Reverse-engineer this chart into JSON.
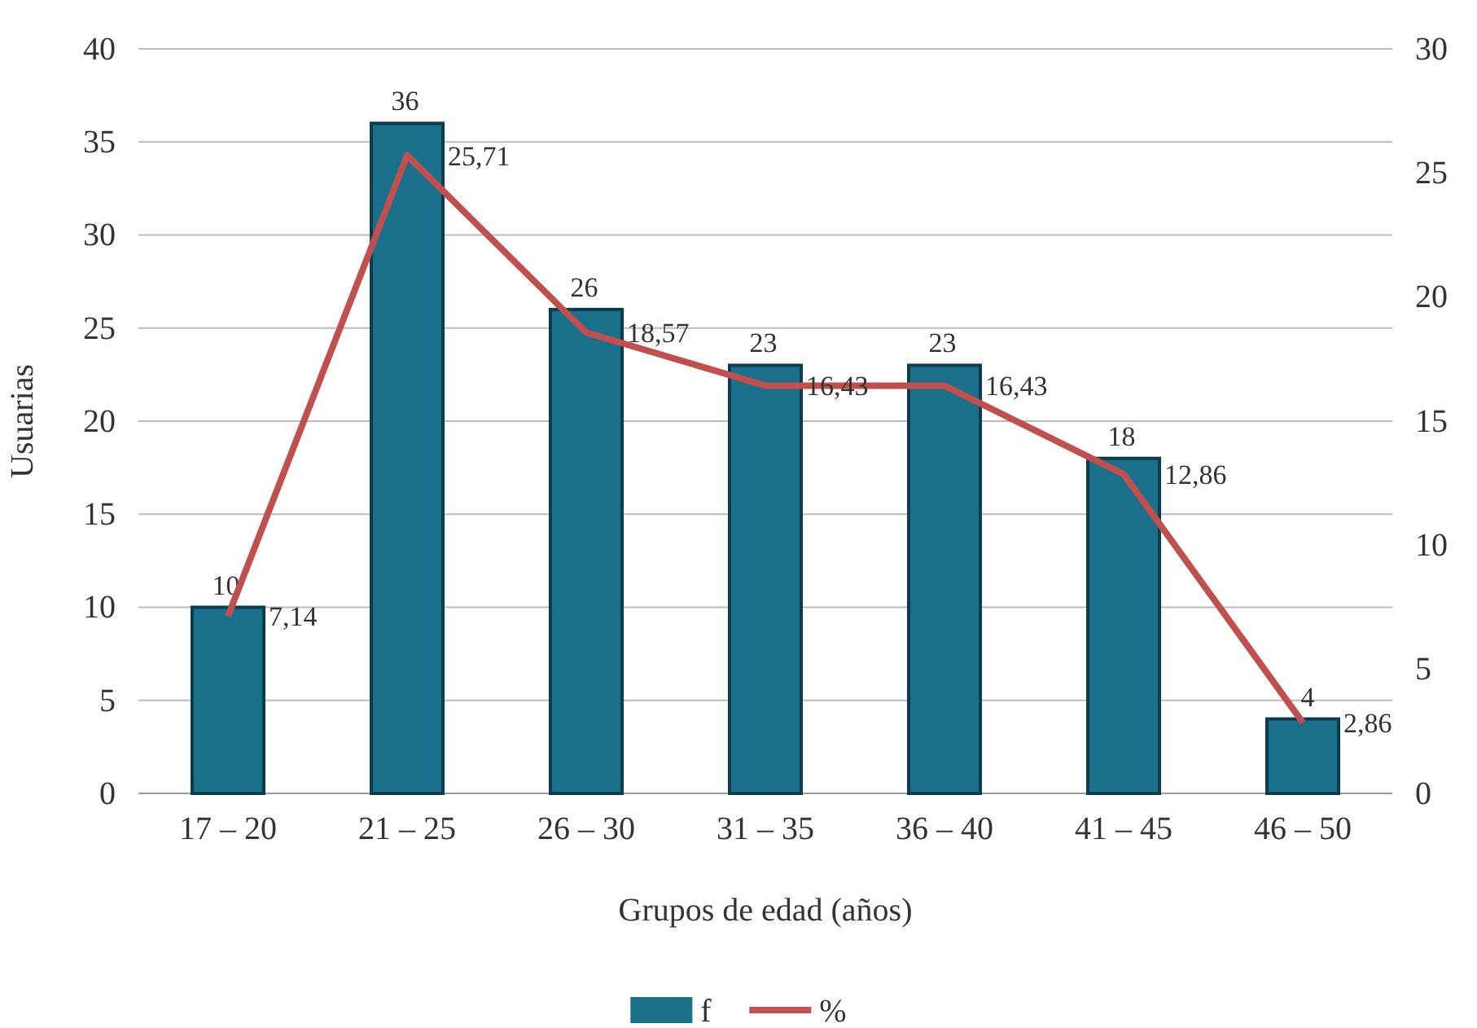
{
  "chart_data": {
    "type": "bar",
    "xlabel": "Grupos de edad (años)",
    "ylabel": "Usuarias",
    "categories": [
      "17 – 20",
      "21 – 25",
      "26 – 30",
      "31 – 35",
      "36 – 40",
      "41 – 45",
      "46 – 50"
    ],
    "series": [
      {
        "name": "f",
        "color": "#1a6f8a",
        "values": [
          10,
          36,
          26,
          23,
          23,
          18,
          4
        ],
        "value_labels": [
          "10",
          "36",
          "26",
          "23",
          "23",
          "18",
          "4"
        ]
      },
      {
        "name": "%",
        "type": "line",
        "axis": "y2",
        "color": "#c0504d",
        "values": [
          7.14,
          25.71,
          18.57,
          16.43,
          16.43,
          12.86,
          2.86
        ],
        "value_labels": [
          "7,14",
          "25,71",
          "18,57",
          "16,43",
          "16,43",
          "12,86",
          "2,86"
        ]
      }
    ],
    "ylim": [
      0,
      40
    ],
    "yticks": [
      0,
      5,
      10,
      15,
      20,
      25,
      30,
      35,
      40
    ],
    "y2lim": [
      0,
      30
    ],
    "y2ticks": [
      0,
      5,
      10,
      15,
      20,
      25,
      30
    ],
    "grid": "y",
    "legend": "bottom",
    "marker": "none",
    "line_style": "solid"
  }
}
